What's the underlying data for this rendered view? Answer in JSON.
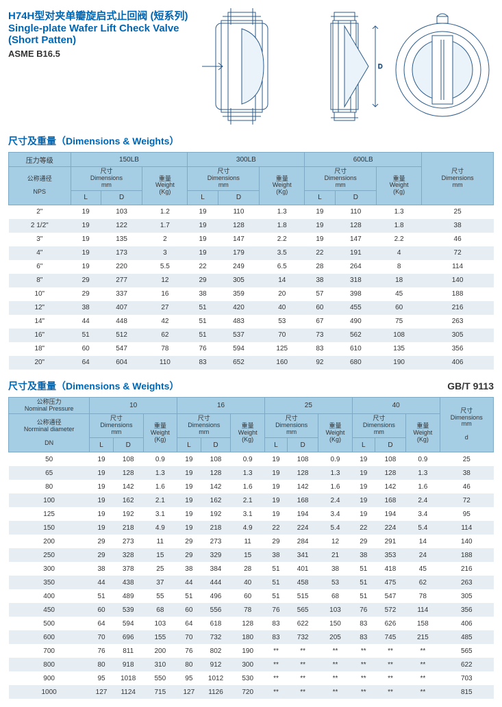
{
  "header": {
    "title_cn": "H74H型对夹单瓣旋启式止回阀 (短系列)",
    "title_en1": "Single-plate Wafer Lift Check Valve",
    "title_en2": "(Short Patten)",
    "spec": "ASME B16.5"
  },
  "section1": {
    "title": "尺寸及重量（Dimensions & Weights）",
    "header_row1_c0": "压力等级",
    "header_row1_c1": "150LB",
    "header_row1_c2": "300LB",
    "header_row1_c3": "600LB",
    "header_row2_c0": "公称通径",
    "dim_cn": "尺寸",
    "dim_en": "Dimensions",
    "dim_unit": "mm",
    "wt_cn": "重量",
    "wt_en": "Weight",
    "wt_unit": "(Kg)",
    "last_col_cn": "尺寸",
    "last_col_en": "Dimensions",
    "last_col_unit": "mm",
    "nps": "NPS",
    "L": "L",
    "D": "D",
    "rows": [
      [
        "2\"",
        "19",
        "103",
        "1.2",
        "19",
        "110",
        "1.3",
        "19",
        "110",
        "1.3",
        "25"
      ],
      [
        "2 1/2\"",
        "19",
        "122",
        "1.7",
        "19",
        "128",
        "1.8",
        "19",
        "128",
        "1.8",
        "38"
      ],
      [
        "3\"",
        "19",
        "135",
        "2",
        "19",
        "147",
        "2.2",
        "19",
        "147",
        "2.2",
        "46"
      ],
      [
        "4\"",
        "19",
        "173",
        "3",
        "19",
        "179",
        "3.5",
        "22",
        "191",
        "4",
        "72"
      ],
      [
        "6\"",
        "19",
        "220",
        "5.5",
        "22",
        "249",
        "6.5",
        "28",
        "264",
        "8",
        "114"
      ],
      [
        "8\"",
        "29",
        "277",
        "12",
        "29",
        "305",
        "14",
        "38",
        "318",
        "18",
        "140"
      ],
      [
        "10\"",
        "29",
        "337",
        "16",
        "38",
        "359",
        "20",
        "57",
        "398",
        "45",
        "188"
      ],
      [
        "12\"",
        "38",
        "407",
        "27",
        "51",
        "420",
        "40",
        "60",
        "455",
        "60",
        "216"
      ],
      [
        "14\"",
        "44",
        "448",
        "42",
        "51",
        "483",
        "53",
        "67",
        "490",
        "75",
        "263"
      ],
      [
        "16\"",
        "51",
        "512",
        "62",
        "51",
        "537",
        "70",
        "73",
        "562",
        "108",
        "305"
      ],
      [
        "18\"",
        "60",
        "547",
        "78",
        "76",
        "594",
        "125",
        "83",
        "610",
        "135",
        "356"
      ],
      [
        "20\"",
        "64",
        "604",
        "110",
        "83",
        "652",
        "160",
        "92",
        "680",
        "190",
        "406"
      ]
    ]
  },
  "section2": {
    "title": "尺寸及重量（Dimensions & Weights）",
    "gbref": "GB/T 9113",
    "header_row1_c0a": "公称压力",
    "header_row1_c0b": "Nominal Pressure",
    "header_row1_c1": "10",
    "header_row1_c2": "16",
    "header_row1_c3": "25",
    "header_row1_c4": "40",
    "header_row2_c0a": "公称通径",
    "header_row2_c0b": "Norminal diameter",
    "dim_cn": "尺寸",
    "dim_en": "Dimensions",
    "dim_unit": "mm",
    "wt_cn": "重量",
    "wt_en": "Weight",
    "wt_unit": "(Kg)",
    "last_col_cn": "尺寸",
    "last_col_en": "Dimensions",
    "last_col_unit": "mm",
    "dn": "DN",
    "L": "L",
    "D": "D",
    "d": "d",
    "rows": [
      [
        "50",
        "19",
        "108",
        "0.9",
        "19",
        "108",
        "0.9",
        "19",
        "108",
        "0.9",
        "19",
        "108",
        "0.9",
        "25"
      ],
      [
        "65",
        "19",
        "128",
        "1.3",
        "19",
        "128",
        "1.3",
        "19",
        "128",
        "1.3",
        "19",
        "128",
        "1.3",
        "38"
      ],
      [
        "80",
        "19",
        "142",
        "1.6",
        "19",
        "142",
        "1.6",
        "19",
        "142",
        "1.6",
        "19",
        "142",
        "1.6",
        "46"
      ],
      [
        "100",
        "19",
        "162",
        "2.1",
        "19",
        "162",
        "2.1",
        "19",
        "168",
        "2.4",
        "19",
        "168",
        "2.4",
        "72"
      ],
      [
        "125",
        "19",
        "192",
        "3.1",
        "19",
        "192",
        "3.1",
        "19",
        "194",
        "3.4",
        "19",
        "194",
        "3.4",
        "95"
      ],
      [
        "150",
        "19",
        "218",
        "4.9",
        "19",
        "218",
        "4.9",
        "22",
        "224",
        "5.4",
        "22",
        "224",
        "5.4",
        "114"
      ],
      [
        "200",
        "29",
        "273",
        "11",
        "29",
        "273",
        "11",
        "29",
        "284",
        "12",
        "29",
        "291",
        "14",
        "140"
      ],
      [
        "250",
        "29",
        "328",
        "15",
        "29",
        "329",
        "15",
        "38",
        "341",
        "21",
        "38",
        "353",
        "24",
        "188"
      ],
      [
        "300",
        "38",
        "378",
        "25",
        "38",
        "384",
        "28",
        "51",
        "401",
        "38",
        "51",
        "418",
        "45",
        "216"
      ],
      [
        "350",
        "44",
        "438",
        "37",
        "44",
        "444",
        "40",
        "51",
        "458",
        "53",
        "51",
        "475",
        "62",
        "263"
      ],
      [
        "400",
        "51",
        "489",
        "55",
        "51",
        "496",
        "60",
        "51",
        "515",
        "68",
        "51",
        "547",
        "78",
        "305"
      ],
      [
        "450",
        "60",
        "539",
        "68",
        "60",
        "556",
        "78",
        "76",
        "565",
        "103",
        "76",
        "572",
        "114",
        "356"
      ],
      [
        "500",
        "64",
        "594",
        "103",
        "64",
        "618",
        "128",
        "83",
        "622",
        "150",
        "83",
        "626",
        "158",
        "406"
      ],
      [
        "600",
        "70",
        "696",
        "155",
        "70",
        "732",
        "180",
        "83",
        "732",
        "205",
        "83",
        "745",
        "215",
        "485"
      ],
      [
        "700",
        "76",
        "811",
        "200",
        "76",
        "802",
        "190",
        "**",
        "**",
        "**",
        "**",
        "**",
        "**",
        "565"
      ],
      [
        "800",
        "80",
        "918",
        "310",
        "80",
        "912",
        "300",
        "**",
        "**",
        "**",
        "**",
        "**",
        "**",
        "622"
      ],
      [
        "900",
        "95",
        "1018",
        "550",
        "95",
        "1012",
        "530",
        "**",
        "**",
        "**",
        "**",
        "**",
        "**",
        "703"
      ],
      [
        "1000",
        "127",
        "1124",
        "715",
        "127",
        "1126",
        "720",
        "**",
        "**",
        "**",
        "**",
        "**",
        "**",
        "815"
      ]
    ]
  },
  "colors": {
    "header_bg": "#a5cde4",
    "zebra": "#e6eef4",
    "blue_text": "#0066b3"
  }
}
